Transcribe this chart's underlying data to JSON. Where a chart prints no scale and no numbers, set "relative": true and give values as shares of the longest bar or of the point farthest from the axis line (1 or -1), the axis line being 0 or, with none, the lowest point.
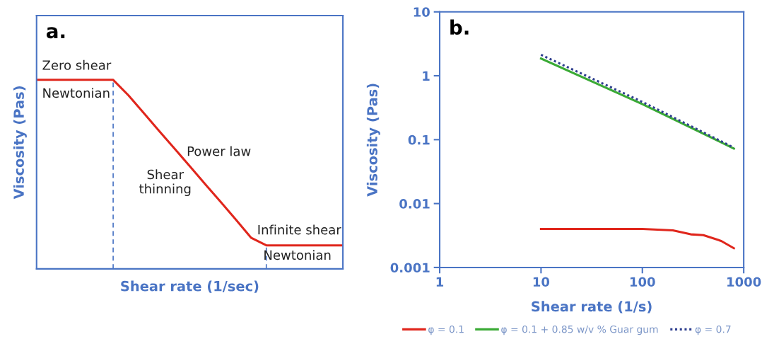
{
  "chart_data": [
    {
      "type": "line",
      "title": "a.",
      "xlabel": "Shear rate (1/sec)",
      "ylabel": "Viscosity (Pas)",
      "relative": true,
      "tick_labels": false,
      "grid": false,
      "categories": [
        null,
        null,
        null,
        null,
        null,
        null,
        null,
        null,
        null,
        null,
        null,
        null,
        null,
        null,
        null,
        null,
        null,
        null,
        null,
        null,
        null
      ],
      "series": [
        {
          "color": "#e0261c",
          "values": [
            1,
            1,
            1,
            1,
            1,
            1,
            0.918,
            0.824,
            0.73,
            0.637,
            0.543,
            0.449,
            0.356,
            0.262,
            0.165,
            0.124,
            0.124,
            0.124,
            0.124,
            0.124,
            0.124
          ]
        }
      ],
      "annotations": [
        "Zero shear",
        "Newtonian",
        "Power law",
        "Shear\nthinning",
        "Infinite shear",
        "Newtonian"
      ]
    },
    {
      "type": "line",
      "title": "b.",
      "xlabel": "Shear rate (1/s)",
      "ylabel": "Viscosity (Pas)",
      "log": "xy",
      "grid": false,
      "legend": "bottom",
      "xlim": [
        1,
        1000
      ],
      "xticks": [
        1,
        10,
        100,
        1000
      ],
      "ylim": [
        0.001,
        10
      ],
      "yticks": [
        0.001,
        0.01,
        0.1,
        1,
        10
      ],
      "series": [
        {
          "name": "φ = 0.1",
          "color": "#e0261c",
          "line_style": "solid",
          "x": [
            10,
            50,
            100,
            200,
            300,
            400,
            600,
            800
          ],
          "values": [
            0.004,
            0.004,
            0.004,
            0.0038,
            0.0033,
            0.0032,
            0.0026,
            0.002
          ]
        },
        {
          "name": "φ = 0.1 + 0.85 w/v % Guar gum",
          "color": "#3aaa35",
          "line_style": "solid",
          "x": [
            10,
            100,
            800
          ],
          "values": [
            1.86,
            0.36,
            0.0727
          ]
        },
        {
          "name": "φ = 0.7",
          "color": "#2f3f8f",
          "line_style": "dotted",
          "x": [
            10,
            100,
            800
          ],
          "values": [
            2.13,
            0.39,
            0.075
          ]
        }
      ]
    }
  ]
}
